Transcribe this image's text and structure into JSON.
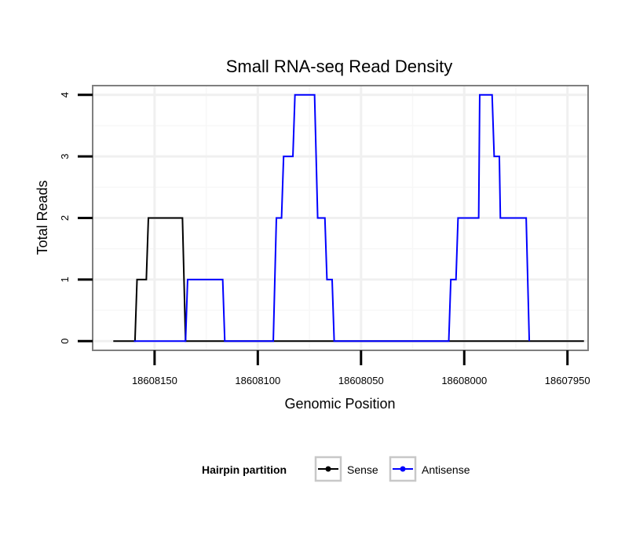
{
  "chart_data": {
    "type": "line",
    "title": "Small RNA-seq Read Density",
    "xlabel": "Genomic Position",
    "ylabel": "Total Reads",
    "x_reversed": true,
    "xlim": [
      18608180,
      18607940
    ],
    "ylim": [
      -0.15,
      4.15
    ],
    "x_ticks": [
      18608150,
      18608100,
      18608050,
      18608000,
      18607950
    ],
    "x_tick_labels": [
      "18608150",
      "18608100",
      "18608050",
      "18608000",
      "18607950"
    ],
    "y_ticks": [
      0,
      1,
      2,
      3,
      4
    ],
    "y_tick_labels": [
      "0",
      "1",
      "2",
      "3",
      "4"
    ],
    "grid": true,
    "legend": {
      "title": "Hairpin partition",
      "position": "bottom"
    },
    "series": [
      {
        "name": "Sense",
        "color": "#000000",
        "points": [
          [
            18608170,
            0
          ],
          [
            18608159.5,
            0
          ],
          [
            18608158.5,
            1
          ],
          [
            18608154,
            1
          ],
          [
            18608153,
            2
          ],
          [
            18608136.5,
            2
          ],
          [
            18608135,
            0
          ],
          [
            18607942,
            0
          ]
        ]
      },
      {
        "name": "Antisense",
        "color": "#0000ff",
        "points": [
          [
            18608160,
            0
          ],
          [
            18608135,
            0
          ],
          [
            18608134,
            1
          ],
          [
            18608117,
            1
          ],
          [
            18608116,
            0
          ],
          [
            18608092.5,
            0
          ],
          [
            18608091,
            2
          ],
          [
            18608088.5,
            2
          ],
          [
            18608087.5,
            3
          ],
          [
            18608083,
            3
          ],
          [
            18608082,
            4
          ],
          [
            18608072.5,
            4
          ],
          [
            18608071,
            2
          ],
          [
            18608067.5,
            2
          ],
          [
            18608066.5,
            1
          ],
          [
            18608064,
            1
          ],
          [
            18608063,
            0
          ],
          [
            18608007.5,
            0
          ],
          [
            18608006.5,
            1
          ],
          [
            18608004,
            1
          ],
          [
            18608003,
            2
          ],
          [
            18607993,
            2
          ],
          [
            18607992.5,
            4
          ],
          [
            18607986.5,
            4
          ],
          [
            18607985.5,
            3
          ],
          [
            18607983,
            3
          ],
          [
            18607982.5,
            2
          ],
          [
            18607970,
            2
          ],
          [
            18607968.5,
            0
          ]
        ]
      }
    ]
  }
}
